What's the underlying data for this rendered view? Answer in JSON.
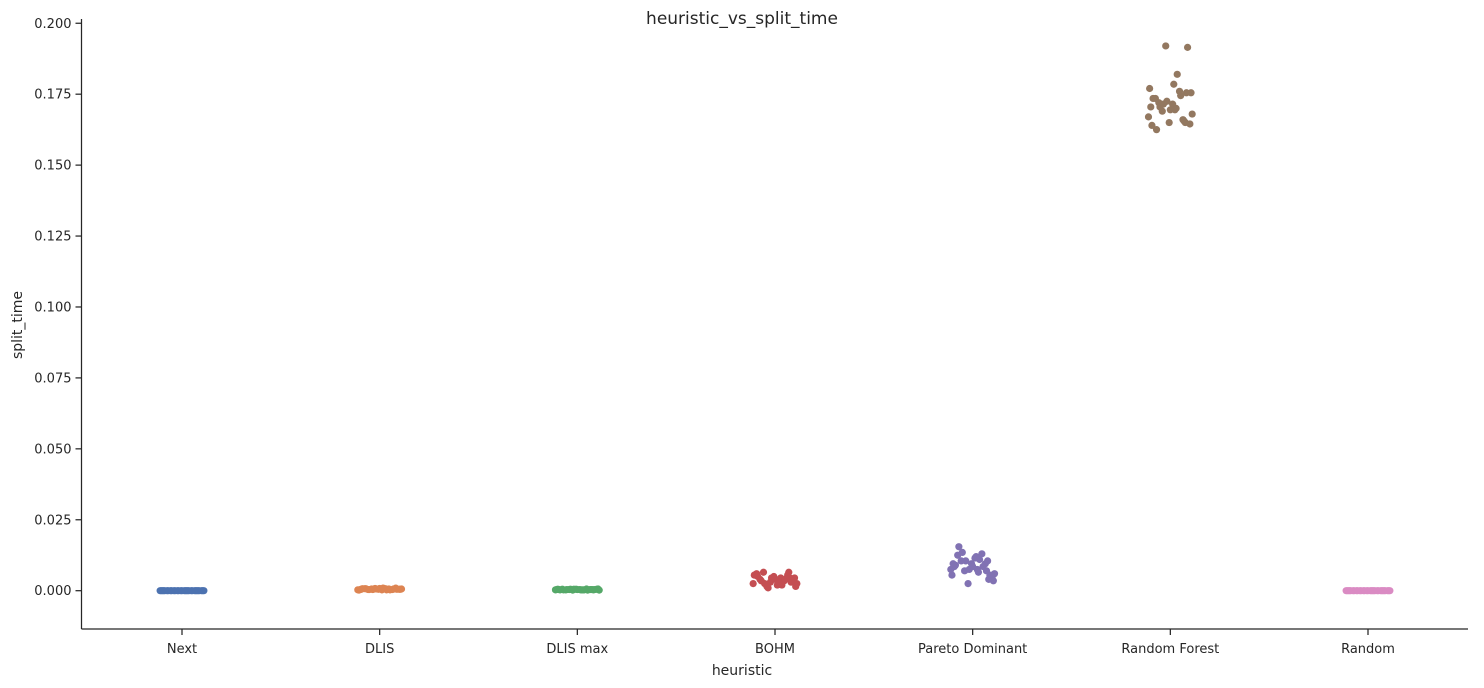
{
  "chart_data": {
    "type": "scatter",
    "title": "heuristic_vs_split_time",
    "xlabel": "heuristic",
    "ylabel": "split_time",
    "ylim": [
      -0.0135,
      0.2015
    ],
    "yticks": [
      "0.000",
      "0.025",
      "0.050",
      "0.075",
      "0.100",
      "0.125",
      "0.150",
      "0.175",
      "0.200"
    ],
    "ytick_values": [
      0,
      0.025,
      0.05,
      0.075,
      0.1,
      0.125,
      0.15,
      0.175,
      0.2
    ],
    "grid": false,
    "legend": "none",
    "categories": [
      "Next",
      "DLIS",
      "DLIS max",
      "BOHM",
      "Pareto Dominant",
      "Random Forest",
      "Random"
    ],
    "series": [
      {
        "category": "Next",
        "color": "#4c72b0",
        "jitter": [
          -0.19,
          -0.16,
          -0.13,
          -0.1,
          -0.07,
          -0.04,
          -0.01,
          0.02,
          0.05,
          0.08,
          0.11,
          0.14,
          0.17,
          0.19,
          -0.18,
          -0.12,
          -0.06,
          0.0,
          0.06,
          0.12,
          0.18,
          -0.15,
          -0.09,
          -0.03,
          0.03,
          0.09,
          0.15,
          -0.17,
          0.04,
          0.13
        ],
        "values": [
          0,
          0,
          0,
          0,
          0,
          0,
          0,
          0,
          0,
          0,
          0,
          0,
          0,
          0,
          0,
          0,
          0,
          0,
          0,
          0,
          0,
          0,
          0,
          0,
          0,
          0,
          0,
          0,
          0,
          0
        ]
      },
      {
        "category": "DLIS",
        "color": "#dd8452",
        "jitter": [
          -0.19,
          -0.16,
          -0.13,
          -0.1,
          -0.07,
          -0.04,
          -0.01,
          0.02,
          0.05,
          0.08,
          0.11,
          0.14,
          0.17,
          0.19,
          -0.18,
          -0.12,
          -0.06,
          0.0,
          0.06,
          0.12,
          0.18,
          -0.15,
          -0.09,
          -0.03,
          0.03,
          0.09,
          0.15,
          -0.17,
          0.04,
          0.13
        ],
        "values": [
          0.0003,
          0.0005,
          0.0007,
          0.0004,
          0.0006,
          0.0008,
          0.0005,
          0.0003,
          0.0007,
          0.0006,
          0.0004,
          0.0009,
          0.0005,
          0.0006,
          0.0002,
          0.0007,
          0.0004,
          0.0008,
          0.0003,
          0.0006,
          0.0005,
          0.0007,
          0.0004,
          0.0006,
          0.0009,
          0.0003,
          0.0005,
          0.0004,
          0.0007,
          0.0006
        ]
      },
      {
        "category": "DLIS max",
        "color": "#55a868",
        "jitter": [
          -0.19,
          -0.16,
          -0.13,
          -0.1,
          -0.07,
          -0.04,
          -0.01,
          0.02,
          0.05,
          0.08,
          0.11,
          0.14,
          0.17,
          0.19,
          -0.18,
          -0.12,
          -0.06,
          0.0,
          0.06,
          0.12,
          0.18,
          -0.15,
          -0.09,
          -0.03,
          0.03,
          0.09,
          0.15,
          -0.17,
          0.04,
          0.13
        ],
        "values": [
          0.0003,
          0.0004,
          0.0005,
          0.0003,
          0.0004,
          0.0002,
          0.0005,
          0.0004,
          0.0003,
          0.0006,
          0.0004,
          0.0003,
          0.0005,
          0.0002,
          0.0004,
          0.0003,
          0.0005,
          0.0004,
          0.0003,
          0.0004,
          0.0006,
          0.0003,
          0.0004,
          0.0005,
          0.0003,
          0.0002,
          0.0004,
          0.0005,
          0.0003,
          0.0004
        ]
      },
      {
        "category": "BOHM",
        "color": "#c44e52",
        "jitter": [
          -0.19,
          -0.16,
          -0.13,
          -0.1,
          -0.07,
          -0.04,
          -0.01,
          0.02,
          0.05,
          0.08,
          0.11,
          0.14,
          0.17,
          0.19,
          -0.18,
          -0.12,
          -0.06,
          0.0,
          0.06,
          0.12,
          0.18,
          -0.15,
          -0.09,
          -0.03,
          0.03,
          0.09,
          0.15,
          -0.17,
          0.04,
          0.13
        ],
        "values": [
          0.0025,
          0.006,
          0.004,
          0.0065,
          0.0015,
          0.003,
          0.005,
          0.002,
          0.0045,
          0.0035,
          0.0055,
          0.003,
          0.0045,
          0.0025,
          0.0055,
          0.0035,
          0.001,
          0.004,
          0.002,
          0.0065,
          0.0015,
          0.005,
          0.0025,
          0.0045,
          0.003,
          0.004,
          0.0035,
          0.0055,
          0.0025,
          0.0045
        ]
      },
      {
        "category": "Pareto Dominant",
        "color": "#8172b3",
        "jitter": [
          -0.19,
          -0.16,
          -0.13,
          -0.1,
          -0.07,
          -0.04,
          -0.01,
          0.02,
          0.05,
          0.08,
          0.11,
          0.14,
          0.17,
          0.19,
          -0.18,
          -0.12,
          -0.06,
          0.0,
          0.06,
          0.12,
          0.18,
          -0.15,
          -0.09,
          -0.03,
          0.03,
          0.09,
          0.15,
          -0.17,
          0.04,
          0.13
        ],
        "values": [
          0.0075,
          0.0085,
          0.0125,
          0.0105,
          0.007,
          0.0025,
          0.0095,
          0.0115,
          0.0065,
          0.013,
          0.0095,
          0.004,
          0.005,
          0.006,
          0.0055,
          0.0155,
          0.0105,
          0.0085,
          0.011,
          0.007,
          0.0035,
          0.009,
          0.0135,
          0.0075,
          0.012,
          0.0085,
          0.0055,
          0.0095,
          0.0075,
          0.0105
        ]
      },
      {
        "category": "Random Forest",
        "color": "#937860",
        "jitter": [
          -0.19,
          -0.16,
          -0.13,
          -0.1,
          -0.07,
          -0.04,
          -0.01,
          0.02,
          0.05,
          0.08,
          0.11,
          0.14,
          0.17,
          0.19,
          -0.18,
          -0.12,
          -0.06,
          0.0,
          0.06,
          0.12,
          0.18,
          -0.15,
          -0.09,
          -0.03,
          0.03,
          0.09,
          0.15,
          -0.17,
          0.04,
          0.13
        ],
        "values": [
          0.167,
          0.164,
          0.1735,
          0.172,
          0.169,
          0.192,
          0.165,
          0.1715,
          0.17,
          0.176,
          0.166,
          0.1755,
          0.1645,
          0.168,
          0.177,
          0.1625,
          0.1715,
          0.1695,
          0.182,
          0.1655,
          0.1755,
          0.1735,
          0.1705,
          0.1725,
          0.1785,
          0.1745,
          0.1915,
          0.1705,
          0.1695,
          0.165
        ]
      },
      {
        "category": "Random",
        "color": "#da8bc3",
        "jitter": [
          -0.19,
          -0.16,
          -0.13,
          -0.1,
          -0.07,
          -0.04,
          -0.01,
          0.02,
          0.05,
          0.08,
          0.11,
          0.14,
          0.17,
          0.19,
          -0.18,
          -0.12,
          -0.06,
          0.0,
          0.06,
          0.12,
          0.18,
          -0.15,
          -0.09,
          -0.03,
          0.03,
          0.09,
          0.15,
          -0.17,
          0.04,
          0.13
        ],
        "values": [
          0,
          0,
          0,
          0,
          0,
          0,
          0,
          0,
          0,
          0,
          0,
          0,
          0,
          0,
          0,
          0,
          0,
          0,
          0,
          0,
          0,
          0,
          0,
          0,
          0,
          0,
          0,
          0,
          0,
          0
        ]
      }
    ]
  }
}
